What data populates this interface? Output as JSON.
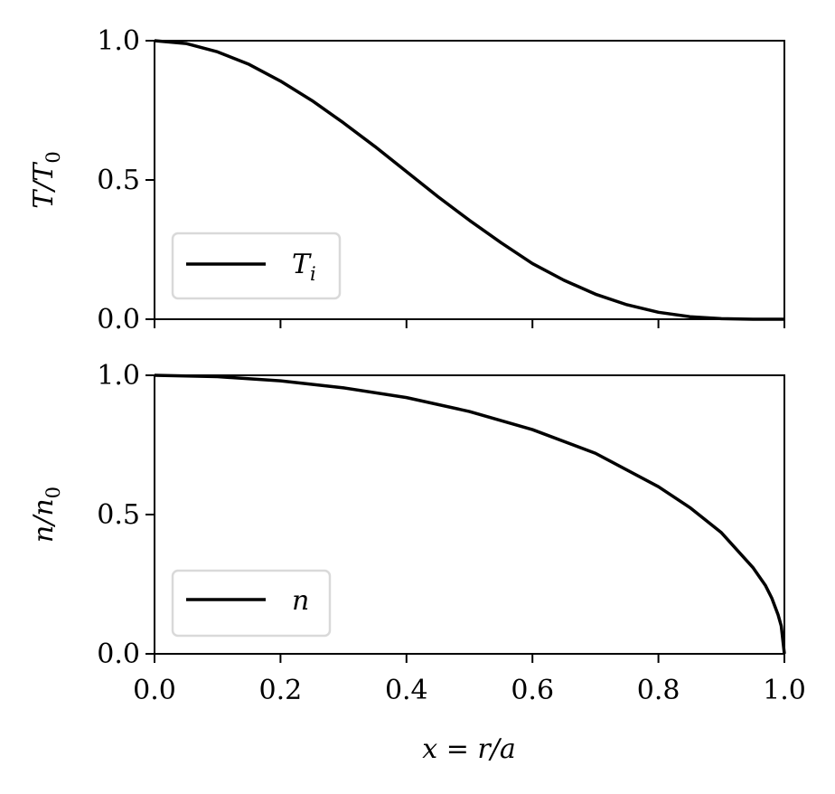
{
  "chart_data": [
    {
      "type": "line",
      "panel": "top",
      "ylabel": "T/T",
      "ylabel_sub": "0",
      "xlim": [
        0.0,
        1.0
      ],
      "ylim": [
        0.0,
        1.0
      ],
      "yticks": [
        "0.0",
        "0.5",
        "1.0"
      ],
      "xticks_labeled": false,
      "legend_placement": "lower-left",
      "series": [
        {
          "name": "T",
          "name_sub": "i",
          "color": "#000000",
          "x": [
            0.0,
            0.05,
            0.1,
            0.15,
            0.2,
            0.25,
            0.3,
            0.35,
            0.4,
            0.45,
            0.5,
            0.55,
            0.6,
            0.65,
            0.7,
            0.75,
            0.8,
            0.85,
            0.9,
            0.95,
            1.0
          ],
          "y": [
            1.0,
            0.99,
            0.96,
            0.915,
            0.855,
            0.785,
            0.705,
            0.62,
            0.53,
            0.44,
            0.355,
            0.275,
            0.2,
            0.14,
            0.09,
            0.052,
            0.025,
            0.009,
            0.002,
            0.0,
            0.0
          ]
        }
      ]
    },
    {
      "type": "line",
      "panel": "bottom",
      "ylabel": "n/n",
      "ylabel_sub": "0",
      "xlabel": "x = r/a",
      "xlim": [
        0.0,
        1.0
      ],
      "ylim": [
        0.0,
        1.0
      ],
      "yticks": [
        "0.0",
        "0.5",
        "1.0"
      ],
      "xticks": [
        "0.0",
        "0.2",
        "0.4",
        "0.6",
        "0.8",
        "1.0"
      ],
      "legend_placement": "lower-left",
      "series": [
        {
          "name": "n",
          "color": "#000000",
          "x": [
            0.0,
            0.1,
            0.2,
            0.3,
            0.4,
            0.5,
            0.6,
            0.7,
            0.8,
            0.85,
            0.9,
            0.95,
            0.97,
            0.98,
            0.99,
            0.995,
            1.0
          ],
          "y": [
            1.0,
            0.995,
            0.98,
            0.955,
            0.92,
            0.87,
            0.805,
            0.72,
            0.6,
            0.525,
            0.435,
            0.31,
            0.245,
            0.2,
            0.14,
            0.1,
            0.0
          ]
        }
      ]
    }
  ]
}
